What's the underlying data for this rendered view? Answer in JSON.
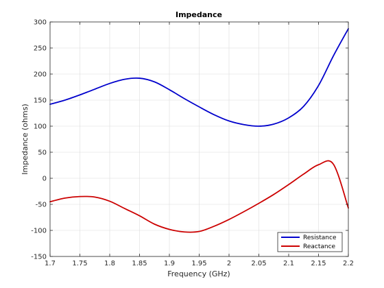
{
  "chart_data": {
    "type": "line",
    "title": "Impedance",
    "xlabel": "Frequency (GHz)",
    "ylabel": "Impedance (ohms)",
    "xlim": [
      1.7,
      2.2
    ],
    "ylim": [
      -150,
      300
    ],
    "xticks": [
      1.7,
      1.75,
      1.8,
      1.85,
      1.9,
      1.95,
      2.0,
      2.05,
      2.1,
      2.15,
      2.2
    ],
    "xtick_labels": [
      "1.7",
      "1.75",
      "1.8",
      "1.85",
      "1.9",
      "1.95",
      "2",
      "2.05",
      "2.1",
      "2.15",
      "2.2"
    ],
    "yticks": [
      -150,
      -100,
      -50,
      0,
      50,
      100,
      150,
      200,
      250,
      300
    ],
    "ytick_labels": [
      "-150",
      "-100",
      "-50",
      "0",
      "50",
      "100",
      "150",
      "200",
      "250",
      "300"
    ],
    "grid": true,
    "legend_position": "bottom-right",
    "x": [
      1.7,
      1.725,
      1.75,
      1.775,
      1.8,
      1.825,
      1.85,
      1.875,
      1.9,
      1.925,
      1.95,
      1.975,
      2.0,
      2.025,
      2.05,
      2.075,
      2.1,
      2.125,
      2.15,
      2.175,
      2.2
    ],
    "series": [
      {
        "name": "Resistance",
        "color": "#0000cc",
        "values": [
          142,
          150,
          160,
          171,
          182,
          190,
          192,
          185,
          170,
          153,
          137,
          122,
          110,
          103,
          100,
          104,
          116,
          138,
          178,
          235,
          287
        ]
      },
      {
        "name": "Reactance",
        "color": "#cc0000",
        "values": [
          -45,
          -38,
          -35,
          -36,
          -44,
          -58,
          -72,
          -88,
          -98,
          -103,
          -102,
          -92,
          -79,
          -64,
          -48,
          -31,
          -12,
          8,
          26,
          27,
          -57
        ]
      }
    ]
  }
}
